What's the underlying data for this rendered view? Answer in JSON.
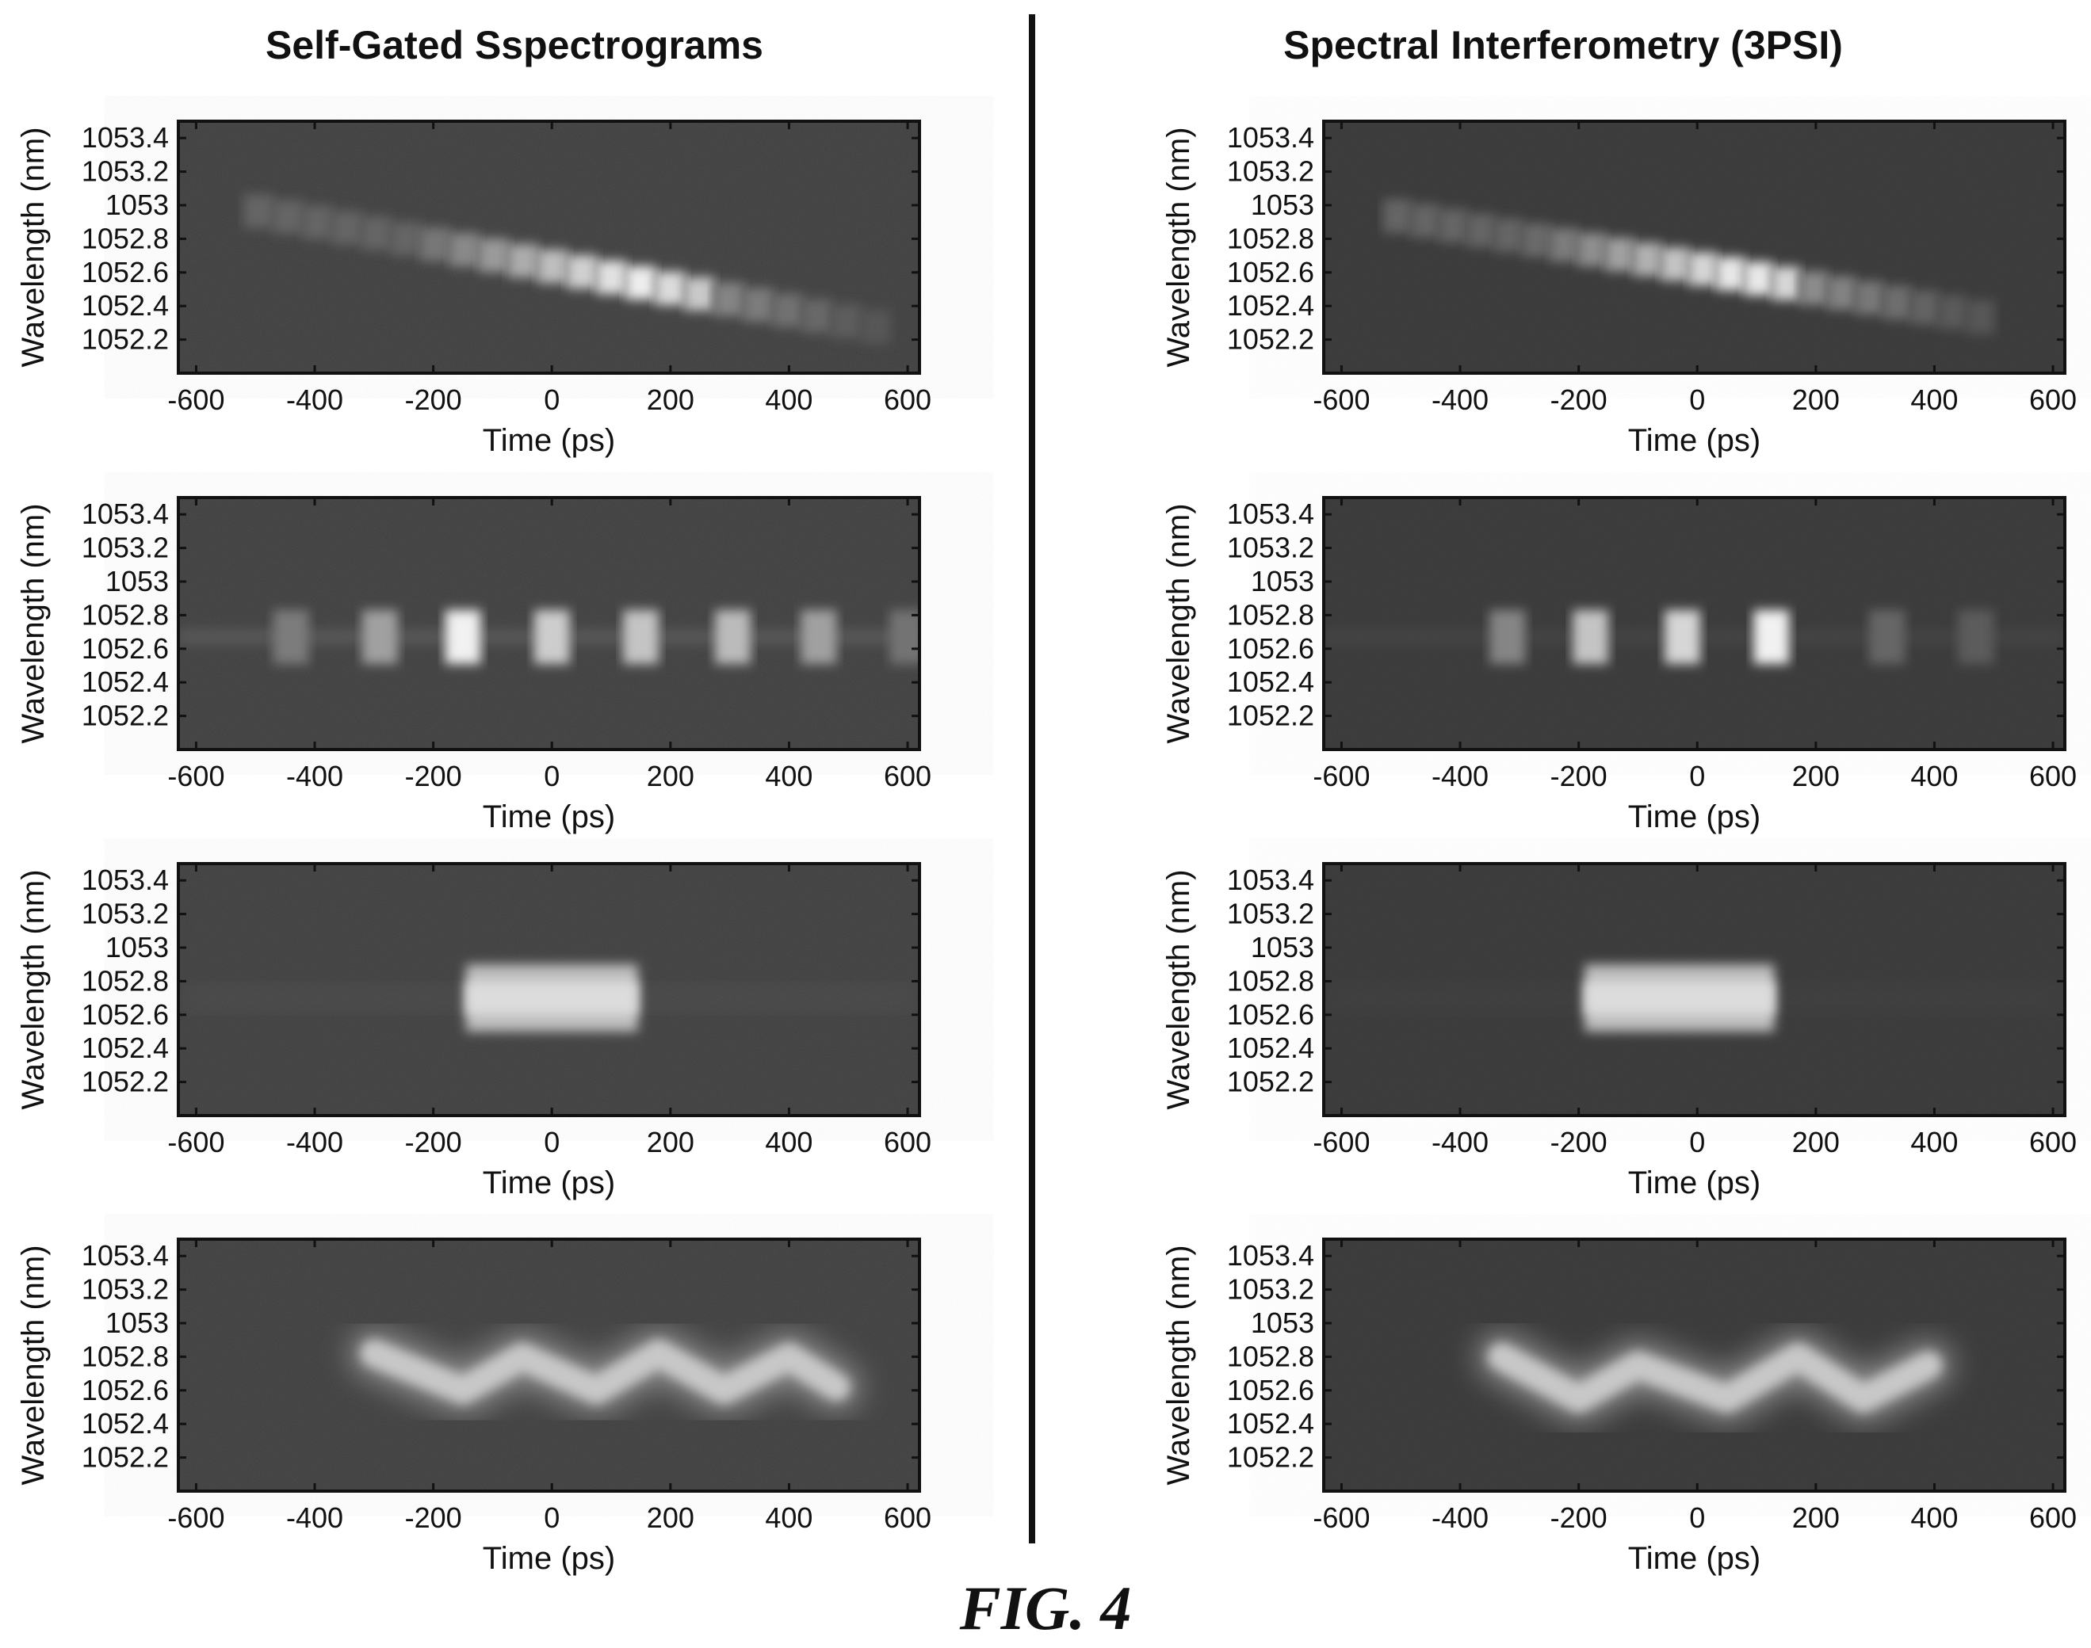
{
  "figure_label": "FIG. 4",
  "columns": [
    {
      "title": "Self-Gated Sspectrograms"
    },
    {
      "title": "Spectral Interferometry (3PSI)"
    }
  ],
  "colors": {
    "background": "#ffffff",
    "ink": "#111111",
    "plot_bg": "#3a3a3a"
  },
  "chart_data": [
    {
      "id": "self-gated-row1",
      "type": "heatmap",
      "title": "Self-Gated Sspectrograms",
      "xlabel": "Time (ps)",
      "ylabel": "Wavelength (nm)",
      "xlim": [
        -630,
        620
      ],
      "ylim": [
        1052.0,
        1053.5
      ],
      "xticks": [
        "-600",
        "-400",
        "-200",
        "0",
        "200",
        "400",
        "600"
      ],
      "yticks": [
        "1053.4",
        "1053.2",
        "1053",
        "1052.8",
        "1052.6",
        "1052.4",
        "1052.2"
      ],
      "trace": {
        "shape": "linear-chirp",
        "t_start": -520,
        "t_end": 570,
        "wl_start": 1052.98,
        "wl_end": 1052.26,
        "brightest_t": 140
      }
    },
    {
      "id": "self-gated-row2",
      "type": "heatmap",
      "xlabel": "Time (ps)",
      "ylabel": "Wavelength (nm)",
      "xlim": [
        -630,
        620
      ],
      "ylim": [
        1052.0,
        1053.5
      ],
      "xticks": [
        "-600",
        "-400",
        "-200",
        "0",
        "200",
        "400",
        "600"
      ],
      "yticks": [
        "1053.4",
        "1053.2",
        "1053",
        "1052.8",
        "1052.6",
        "1052.4",
        "1052.2"
      ],
      "trace": {
        "shape": "pulse-train",
        "center_wl": 1052.67,
        "pulse_times": [
          -440,
          -290,
          -150,
          0,
          150,
          305,
          450,
          600
        ],
        "pulse_intensity": [
          0.3,
          0.5,
          0.95,
          0.75,
          0.7,
          0.65,
          0.5,
          0.25
        ]
      }
    },
    {
      "id": "self-gated-row3",
      "type": "heatmap",
      "xlabel": "Time (ps)",
      "ylabel": "Wavelength (nm)",
      "xlim": [
        -630,
        620
      ],
      "ylim": [
        1052.0,
        1053.5
      ],
      "xticks": [
        "-600",
        "-400",
        "-200",
        "0",
        "200",
        "400",
        "600"
      ],
      "yticks": [
        "1053.4",
        "1053.2",
        "1053",
        "1052.8",
        "1052.6",
        "1052.4",
        "1052.2"
      ],
      "trace": {
        "shape": "square-pulse",
        "center_wl": 1052.7,
        "t_start": -145,
        "t_end": 145
      }
    },
    {
      "id": "self-gated-row4",
      "type": "heatmap",
      "xlabel": "Time (ps)",
      "ylabel": "Wavelength (nm)",
      "xlim": [
        -630,
        620
      ],
      "ylim": [
        1052.0,
        1053.5
      ],
      "xticks": [
        "-600",
        "-400",
        "-200",
        "0",
        "200",
        "400",
        "600"
      ],
      "yticks": [
        "1053.4",
        "1053.2",
        "1053",
        "1052.8",
        "1052.6",
        "1052.4",
        "1052.2"
      ],
      "trace": {
        "shape": "sawtooth",
        "vertices": [
          [
            -300,
            1052.82
          ],
          [
            -150,
            1052.6
          ],
          [
            -50,
            1052.8
          ],
          [
            75,
            1052.6
          ],
          [
            180,
            1052.82
          ],
          [
            290,
            1052.6
          ],
          [
            400,
            1052.8
          ],
          [
            480,
            1052.62
          ]
        ]
      }
    },
    {
      "id": "spectral-interferometry-row1",
      "type": "heatmap",
      "title": "Spectral Interferometry (3PSI)",
      "xlabel": "Time (ps)",
      "ylabel": "Wavelength (nm)",
      "xlim": [
        -630,
        620
      ],
      "ylim": [
        1052.0,
        1053.5
      ],
      "xticks": [
        "-600",
        "-400",
        "-200",
        "0",
        "200",
        "400",
        "600"
      ],
      "yticks": [
        "1053.4",
        "1053.2",
        "1053",
        "1052.8",
        "1052.6",
        "1052.4",
        "1052.2"
      ],
      "trace": {
        "shape": "linear-chirp",
        "t_start": -530,
        "t_end": 500,
        "wl_start": 1052.95,
        "wl_end": 1052.32,
        "brightest_t": 80
      }
    },
    {
      "id": "spectral-interferometry-row2",
      "type": "heatmap",
      "xlabel": "Time (ps)",
      "ylabel": "Wavelength (nm)",
      "xlim": [
        -630,
        620
      ],
      "ylim": [
        1052.0,
        1053.5
      ],
      "xticks": [
        "-600",
        "-400",
        "-200",
        "0",
        "200",
        "400",
        "600"
      ],
      "yticks": [
        "1053.4",
        "1053.2",
        "1053",
        "1052.8",
        "1052.6",
        "1052.4",
        "1052.2"
      ],
      "trace": {
        "shape": "pulse-train",
        "center_wl": 1052.67,
        "pulse_times": [
          -320,
          -180,
          -25,
          125,
          320,
          470
        ],
        "pulse_intensity": [
          0.35,
          0.7,
          0.8,
          0.95,
          0.18,
          0.12
        ]
      }
    },
    {
      "id": "spectral-interferometry-row3",
      "type": "heatmap",
      "xlabel": "Time (ps)",
      "ylabel": "Wavelength (nm)",
      "xlim": [
        -630,
        620
      ],
      "ylim": [
        1052.0,
        1053.5
      ],
      "xticks": [
        "-600",
        "-400",
        "-200",
        "0",
        "200",
        "400",
        "600"
      ],
      "yticks": [
        "1053.4",
        "1053.2",
        "1053",
        "1052.8",
        "1052.6",
        "1052.4",
        "1052.2"
      ],
      "trace": {
        "shape": "square-pulse",
        "center_wl": 1052.7,
        "t_start": -190,
        "t_end": 130
      }
    },
    {
      "id": "spectral-interferometry-row4",
      "type": "heatmap",
      "xlabel": "Time (ps)",
      "ylabel": "Wavelength (nm)",
      "xlim": [
        -630,
        620
      ],
      "ylim": [
        1052.0,
        1053.5
      ],
      "xticks": [
        "-600",
        "-400",
        "-200",
        "0",
        "200",
        "400",
        "600"
      ],
      "yticks": [
        "1053.4",
        "1053.2",
        "1053",
        "1052.8",
        "1052.6",
        "1052.4",
        "1052.2"
      ],
      "trace": {
        "shape": "wave",
        "vertices": [
          [
            -330,
            1052.8
          ],
          [
            -200,
            1052.55
          ],
          [
            -100,
            1052.75
          ],
          [
            50,
            1052.55
          ],
          [
            170,
            1052.8
          ],
          [
            280,
            1052.55
          ],
          [
            390,
            1052.75
          ]
        ]
      }
    }
  ]
}
